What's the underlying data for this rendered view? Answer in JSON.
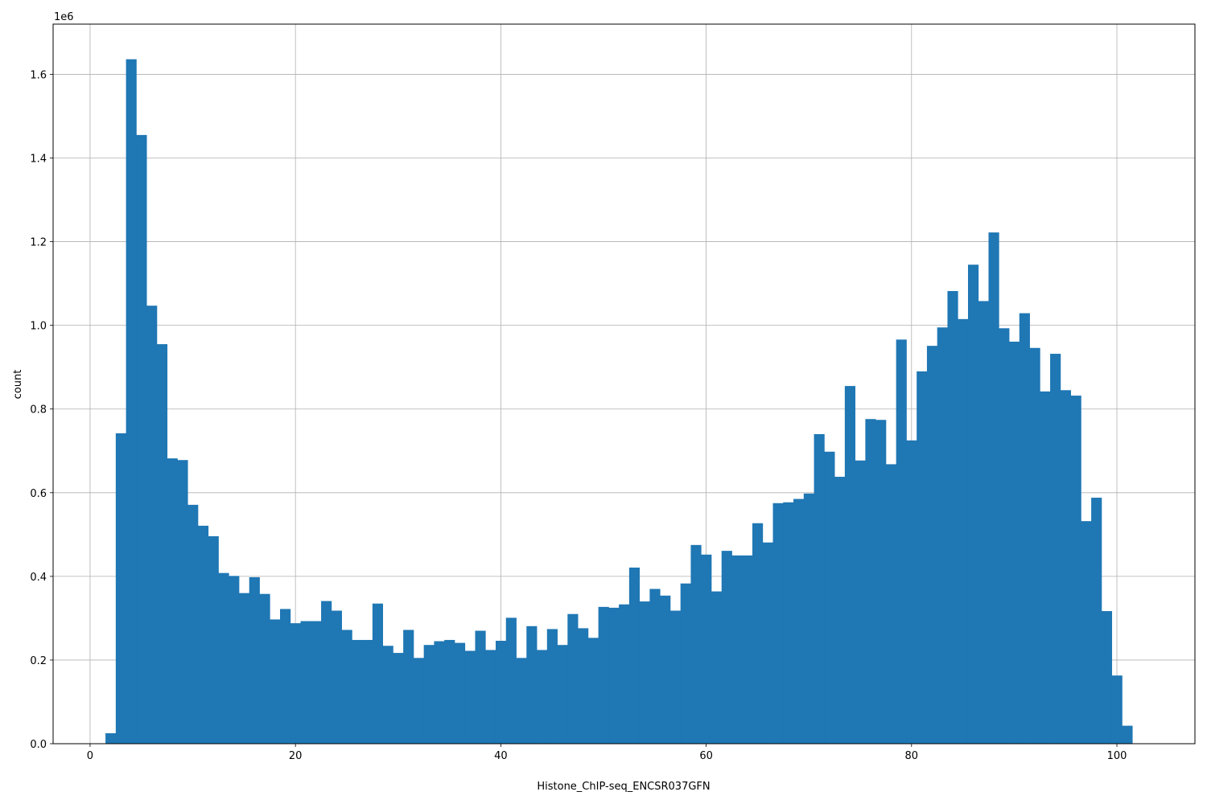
{
  "chart_data": {
    "type": "bar",
    "title": "",
    "xlabel": "Histone_ChIP-seq_ENCSR037GFN",
    "ylabel": "count",
    "y_multiplier_label": "1e6",
    "xlim": [
      -3.6,
      107.6
    ],
    "ylim": [
      0,
      1.72
    ],
    "xticks": [
      0,
      20,
      40,
      60,
      80,
      100
    ],
    "xtick_labels": [
      "0",
      "20",
      "40",
      "60",
      "80",
      "100"
    ],
    "yticks": [
      0,
      0.2,
      0.4,
      0.6,
      0.8,
      1.0,
      1.2,
      1.4,
      1.6
    ],
    "ytick_labels": [
      "0.0",
      "0.2",
      "0.4",
      "0.6",
      "0.8",
      "1.0",
      "1.2",
      "1.4",
      "1.6"
    ],
    "grid": true,
    "bar_color": "#1f77b4",
    "bin_start": 1.5,
    "bin_width": 1.0,
    "values": [
      0.025,
      0.742,
      1.636,
      1.455,
      1.047,
      0.955,
      0.682,
      0.678,
      0.571,
      0.521,
      0.496,
      0.408,
      0.401,
      0.36,
      0.398,
      0.358,
      0.297,
      0.322,
      0.288,
      0.293,
      0.293,
      0.341,
      0.318,
      0.272,
      0.248,
      0.248,
      0.335,
      0.234,
      0.217,
      0.272,
      0.205,
      0.236,
      0.245,
      0.248,
      0.241,
      0.222,
      0.27,
      0.224,
      0.246,
      0.301,
      0.205,
      0.281,
      0.224,
      0.274,
      0.236,
      0.31,
      0.276,
      0.253,
      0.327,
      0.325,
      0.333,
      0.421,
      0.34,
      0.37,
      0.354,
      0.318,
      0.383,
      0.475,
      0.452,
      0.364,
      0.461,
      0.45,
      0.45,
      0.527,
      0.481,
      0.575,
      0.577,
      0.585,
      0.598,
      0.74,
      0.698,
      0.638,
      0.855,
      0.677,
      0.776,
      0.774,
      0.668,
      0.966,
      0.725,
      0.89,
      0.951,
      0.995,
      1.082,
      1.015,
      1.145,
      1.058,
      1.222,
      0.993,
      0.961,
      1.029,
      0.946,
      0.842,
      0.932,
      0.845,
      0.832,
      0.532,
      0.588,
      0.317,
      0.163,
      0.043
    ]
  }
}
